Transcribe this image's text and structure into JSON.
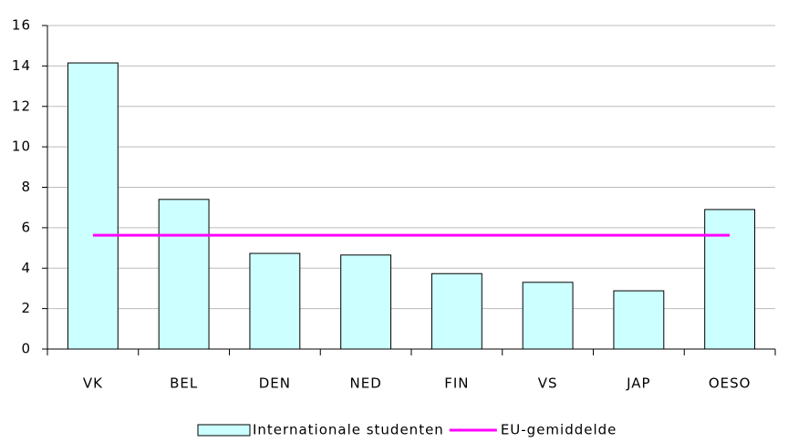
{
  "chart_data": {
    "type": "bar",
    "categories": [
      "VK",
      "BEL",
      "DEN",
      "NED",
      "FIN",
      "VS",
      "JAP",
      "OESO"
    ],
    "series": [
      {
        "name": "Internationale studenten",
        "type": "bar",
        "color": "#ccffff",
        "values": [
          14.15,
          7.4,
          4.73,
          4.65,
          3.73,
          3.3,
          2.88,
          6.9
        ]
      },
      {
        "name": "EU-gemiddelde",
        "type": "line",
        "color": "#ff00ff",
        "values": [
          5.63,
          5.63,
          5.63,
          5.63,
          5.63,
          5.63,
          5.63,
          5.63
        ]
      }
    ],
    "ylim": [
      0,
      16
    ],
    "yticks": [
      0,
      2,
      4,
      6,
      8,
      10,
      12,
      14,
      16
    ],
    "grid": true,
    "legend": "bottom"
  }
}
